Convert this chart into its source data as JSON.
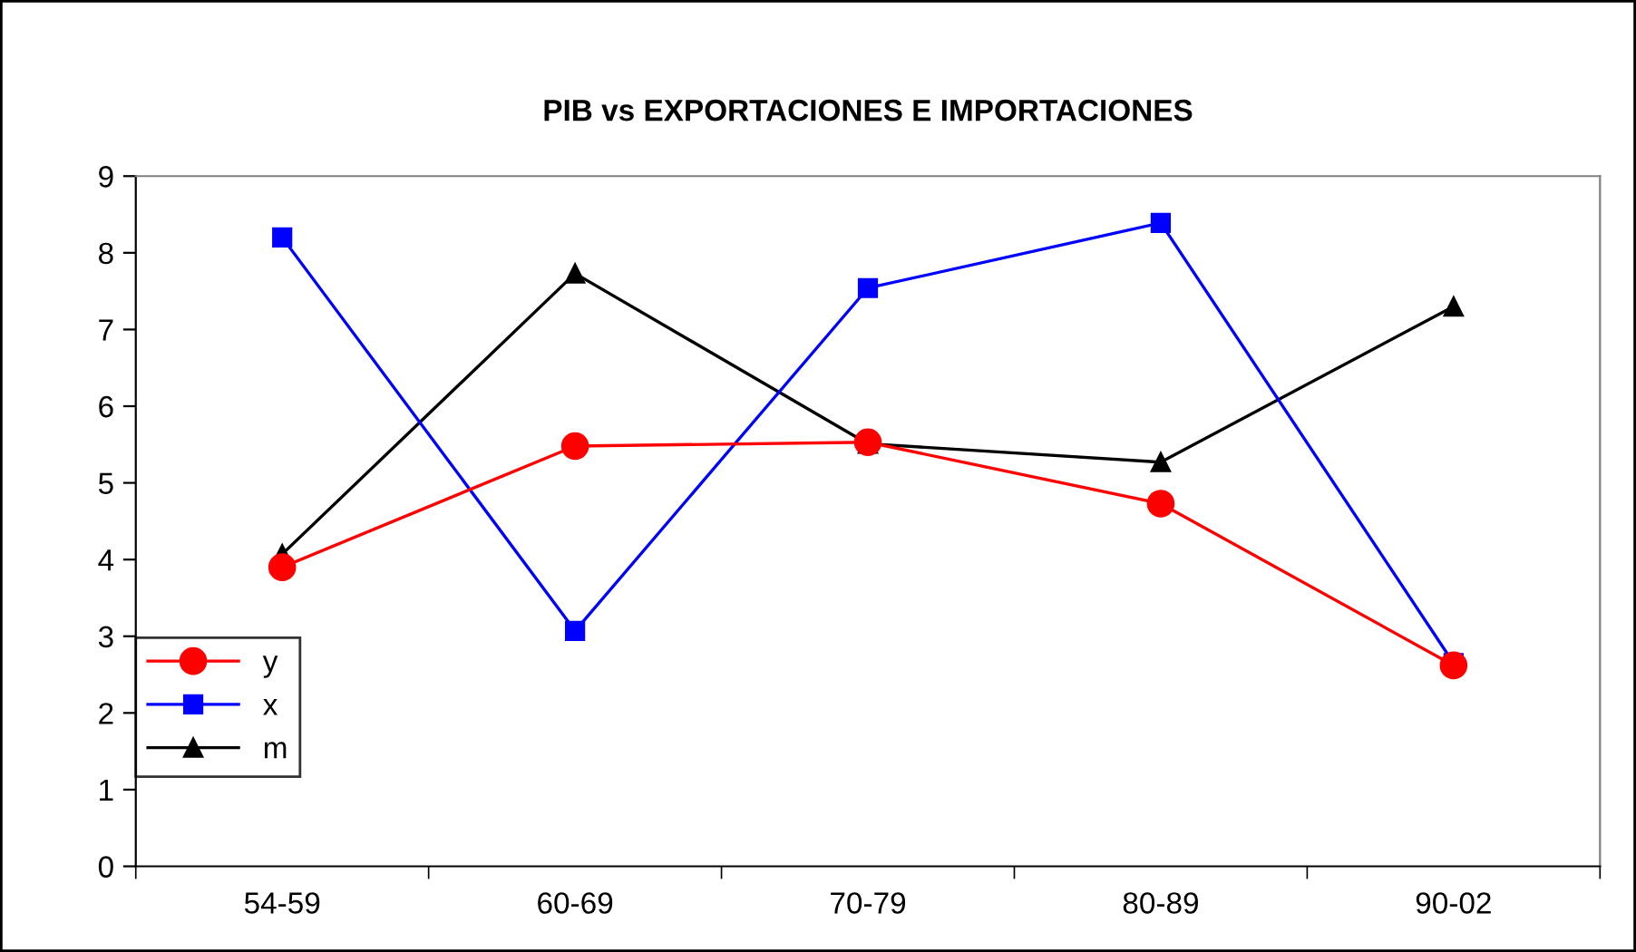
{
  "chart_data": {
    "type": "line",
    "title": "PIB vs EXPORTACIONES E IMPORTACIONES",
    "categories": [
      "54-59",
      "60-69",
      "70-79",
      "80-89",
      "90-02"
    ],
    "series": [
      {
        "name": "y",
        "color": "#ff0000",
        "marker": "circle",
        "values": [
          3.9,
          5.48,
          5.53,
          4.73,
          2.62
        ]
      },
      {
        "name": "x",
        "color": "#0000ff",
        "marker": "square",
        "values": [
          8.2,
          3.07,
          7.54,
          8.39,
          2.65
        ]
      },
      {
        "name": "m",
        "color": "#000000",
        "marker": "triangle",
        "values": [
          4.07,
          7.73,
          5.51,
          5.27,
          7.3
        ]
      }
    ],
    "ylim": [
      0,
      9
    ],
    "yticks": [
      0,
      1,
      2,
      3,
      4,
      5,
      6,
      7,
      8,
      9
    ],
    "grid": false,
    "legend": "left",
    "line_style": "solid"
  }
}
